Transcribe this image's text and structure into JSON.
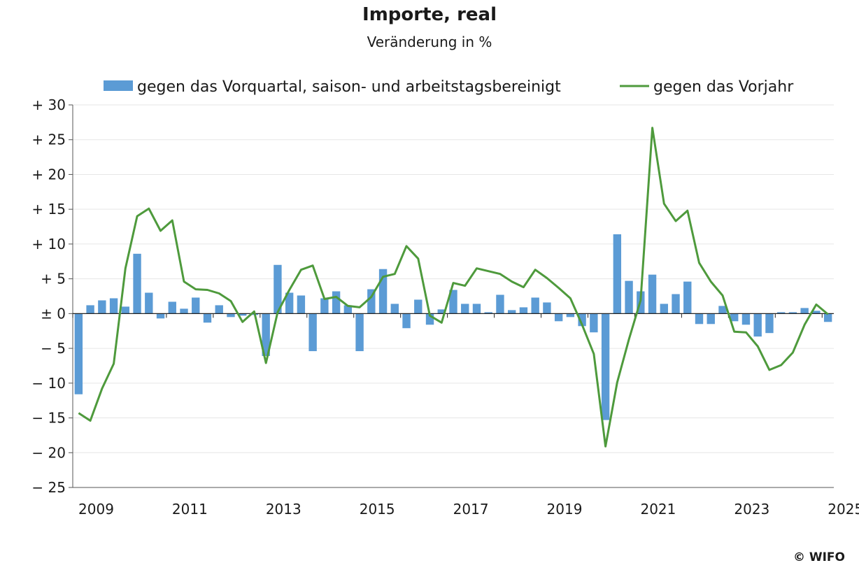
{
  "chart_data": {
    "type": "bar+line",
    "title": "Importe, real",
    "subtitle": "Veränderung in %",
    "ylim": [
      -25,
      30
    ],
    "y_ticks": [
      {
        "value": 30,
        "label": "+ 30"
      },
      {
        "value": 25,
        "label": "+ 25"
      },
      {
        "value": 20,
        "label": "+ 20"
      },
      {
        "value": 15,
        "label": "+ 15"
      },
      {
        "value": 10,
        "label": "+ 10"
      },
      {
        "value": 5,
        "label": "+ 5"
      },
      {
        "value": 0,
        "label": "± 0"
      },
      {
        "value": -5,
        "label": "− 5"
      },
      {
        "value": -10,
        "label": "− 10"
      },
      {
        "value": -15,
        "label": "− 15"
      },
      {
        "value": -20,
        "label": "− 20"
      },
      {
        "value": -25,
        "label": "− 25"
      }
    ],
    "x_start": "2009Q1",
    "x_labels": [
      "2009",
      "2011",
      "2013",
      "2015",
      "2017",
      "2019",
      "2021",
      "2023",
      "2025"
    ],
    "grid": true,
    "legend_position": "top",
    "series": [
      {
        "name": "gegen das Vorquartal, saison- und arbeitstagsbereinigt",
        "type": "bar",
        "color": "#5b9bd5",
        "values": [
          -11.6,
          1.2,
          1.9,
          2.2,
          1.0,
          8.6,
          3.0,
          -0.7,
          1.7,
          0.7,
          2.3,
          -1.3,
          1.2,
          -0.5,
          -0.3,
          -0.2,
          -6.1,
          7.0,
          3.0,
          2.6,
          -5.4,
          2.2,
          3.2,
          1.2,
          -5.4,
          3.5,
          6.4,
          1.4,
          -2.1,
          2.0,
          -1.6,
          0.6,
          3.4,
          1.4,
          1.4,
          0.2,
          2.7,
          0.5,
          0.9,
          2.3,
          1.6,
          -1.1,
          -0.5,
          -1.8,
          -2.7,
          -15.3,
          11.4,
          4.7,
          3.2,
          5.6,
          1.4,
          2.8,
          4.6,
          -1.5,
          -1.5,
          1.1,
          -1.1,
          -1.6,
          -3.3,
          -2.8,
          0.2,
          0.2,
          0.8,
          0.4,
          -1.2
        ]
      },
      {
        "name": "gegen das Vorjahr",
        "type": "line",
        "color": "#4e9a3c",
        "values": [
          -14.3,
          -15.4,
          -10.8,
          -7.2,
          6.5,
          14.0,
          15.1,
          11.9,
          13.4,
          4.6,
          3.5,
          3.4,
          2.9,
          1.8,
          -1.2,
          0.3,
          -7.1,
          0.2,
          3.4,
          6.3,
          6.9,
          2.1,
          2.4,
          1.1,
          0.9,
          2.4,
          5.3,
          5.7,
          9.7,
          7.9,
          -0.3,
          -1.3,
          4.4,
          4.0,
          6.5,
          6.1,
          5.7,
          4.6,
          3.8,
          6.3,
          5.1,
          3.7,
          2.2,
          -1.6,
          -5.8,
          -19.1,
          -9.9,
          -3.7,
          1.9,
          26.7,
          15.8,
          13.3,
          14.8,
          7.3,
          4.6,
          2.6,
          -2.6,
          -2.7,
          -4.7,
          -8.1,
          -7.4,
          -5.6,
          -1.6,
          1.3,
          -0.1
        ]
      }
    ]
  },
  "copyright": "© WIFO"
}
